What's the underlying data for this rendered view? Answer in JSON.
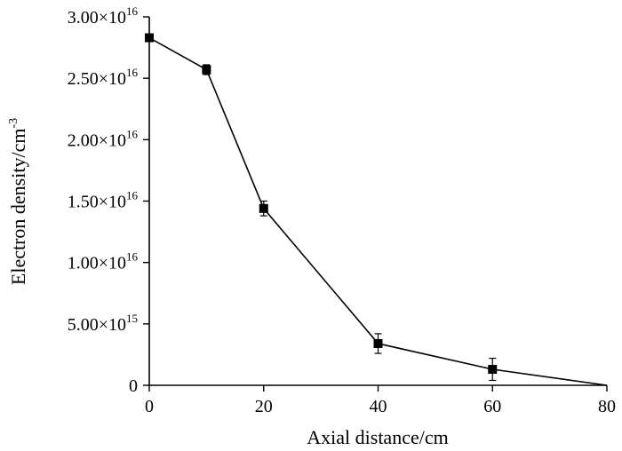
{
  "chart_data": {
    "type": "line",
    "xlabel": "Axial distance/cm",
    "ylabel_base": "Electron density/cm",
    "ylabel_exp": "-3",
    "xlim": [
      0,
      80
    ],
    "ylim": [
      0,
      3e+16
    ],
    "x_ticks": [
      {
        "value": 0,
        "label": "0"
      },
      {
        "value": 20,
        "label": "20"
      },
      {
        "value": 40,
        "label": "40"
      },
      {
        "value": 60,
        "label": "60"
      },
      {
        "value": 80,
        "label": "80"
      }
    ],
    "y_ticks": [
      {
        "value": 0,
        "mantissa": "0",
        "exp": ""
      },
      {
        "value": 5000000000000000.0,
        "mantissa": "5.00×10",
        "exp": "15"
      },
      {
        "value": 1e+16,
        "mantissa": "1.00×10",
        "exp": "16"
      },
      {
        "value": 1.5e+16,
        "mantissa": "1.50×10",
        "exp": "16"
      },
      {
        "value": 2e+16,
        "mantissa": "2.00×10",
        "exp": "16"
      },
      {
        "value": 2.5e+16,
        "mantissa": "2.50×10",
        "exp": "16"
      },
      {
        "value": 3e+16,
        "mantissa": "3.00×10",
        "exp": "16"
      }
    ],
    "grid": false,
    "series": [
      {
        "x": [
          0,
          10,
          20,
          40,
          60,
          80
        ],
        "y": [
          2.83e+16,
          2.57e+16,
          1.44e+16,
          3400000000000000.0,
          1300000000000000.0,
          0
        ],
        "error": [
          0,
          400000000000000.0,
          600000000000000.0,
          800000000000000.0,
          900000000000000.0,
          0
        ],
        "marker": [
          true,
          true,
          true,
          true,
          true,
          false
        ],
        "color": "#000000"
      }
    ]
  }
}
